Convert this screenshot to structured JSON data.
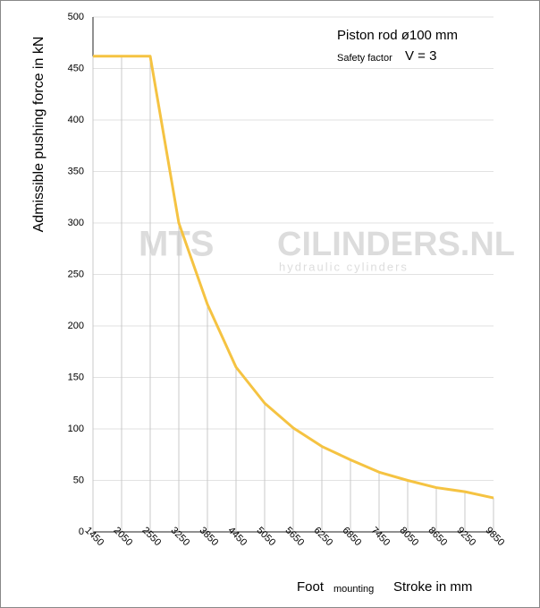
{
  "chart_data": {
    "type": "line",
    "y_label": "Admissible pushing force in kN",
    "annotations": {
      "piston": "Piston rod ø100 mm",
      "safety": "Safety factor",
      "factor": "V = 3",
      "foot": "Foot",
      "mounting": "mounting",
      "stroke": "Stroke in mm"
    },
    "watermark": {
      "brand": "MTS",
      "site": "CILINDERS.NL",
      "tagline": "hydraulic cylinders"
    },
    "categories": [
      "1450",
      "2050",
      "2550",
      "3250",
      "3850",
      "4450",
      "5050",
      "5650",
      "6250",
      "6850",
      "7450",
      "8050",
      "8650",
      "9250",
      "9850"
    ],
    "series": [
      {
        "name": "Piston rod ø100 mm",
        "color": "#f5c342",
        "values": [
          462,
          462,
          462,
          300,
          221,
          160,
          125,
          101,
          83,
          70,
          58,
          50,
          43,
          39,
          33
        ]
      }
    ],
    "ylim": [
      0,
      500
    ],
    "yticks": [
      0,
      50,
      100,
      150,
      200,
      250,
      300,
      350,
      400,
      450,
      500
    ],
    "grid": true
  }
}
